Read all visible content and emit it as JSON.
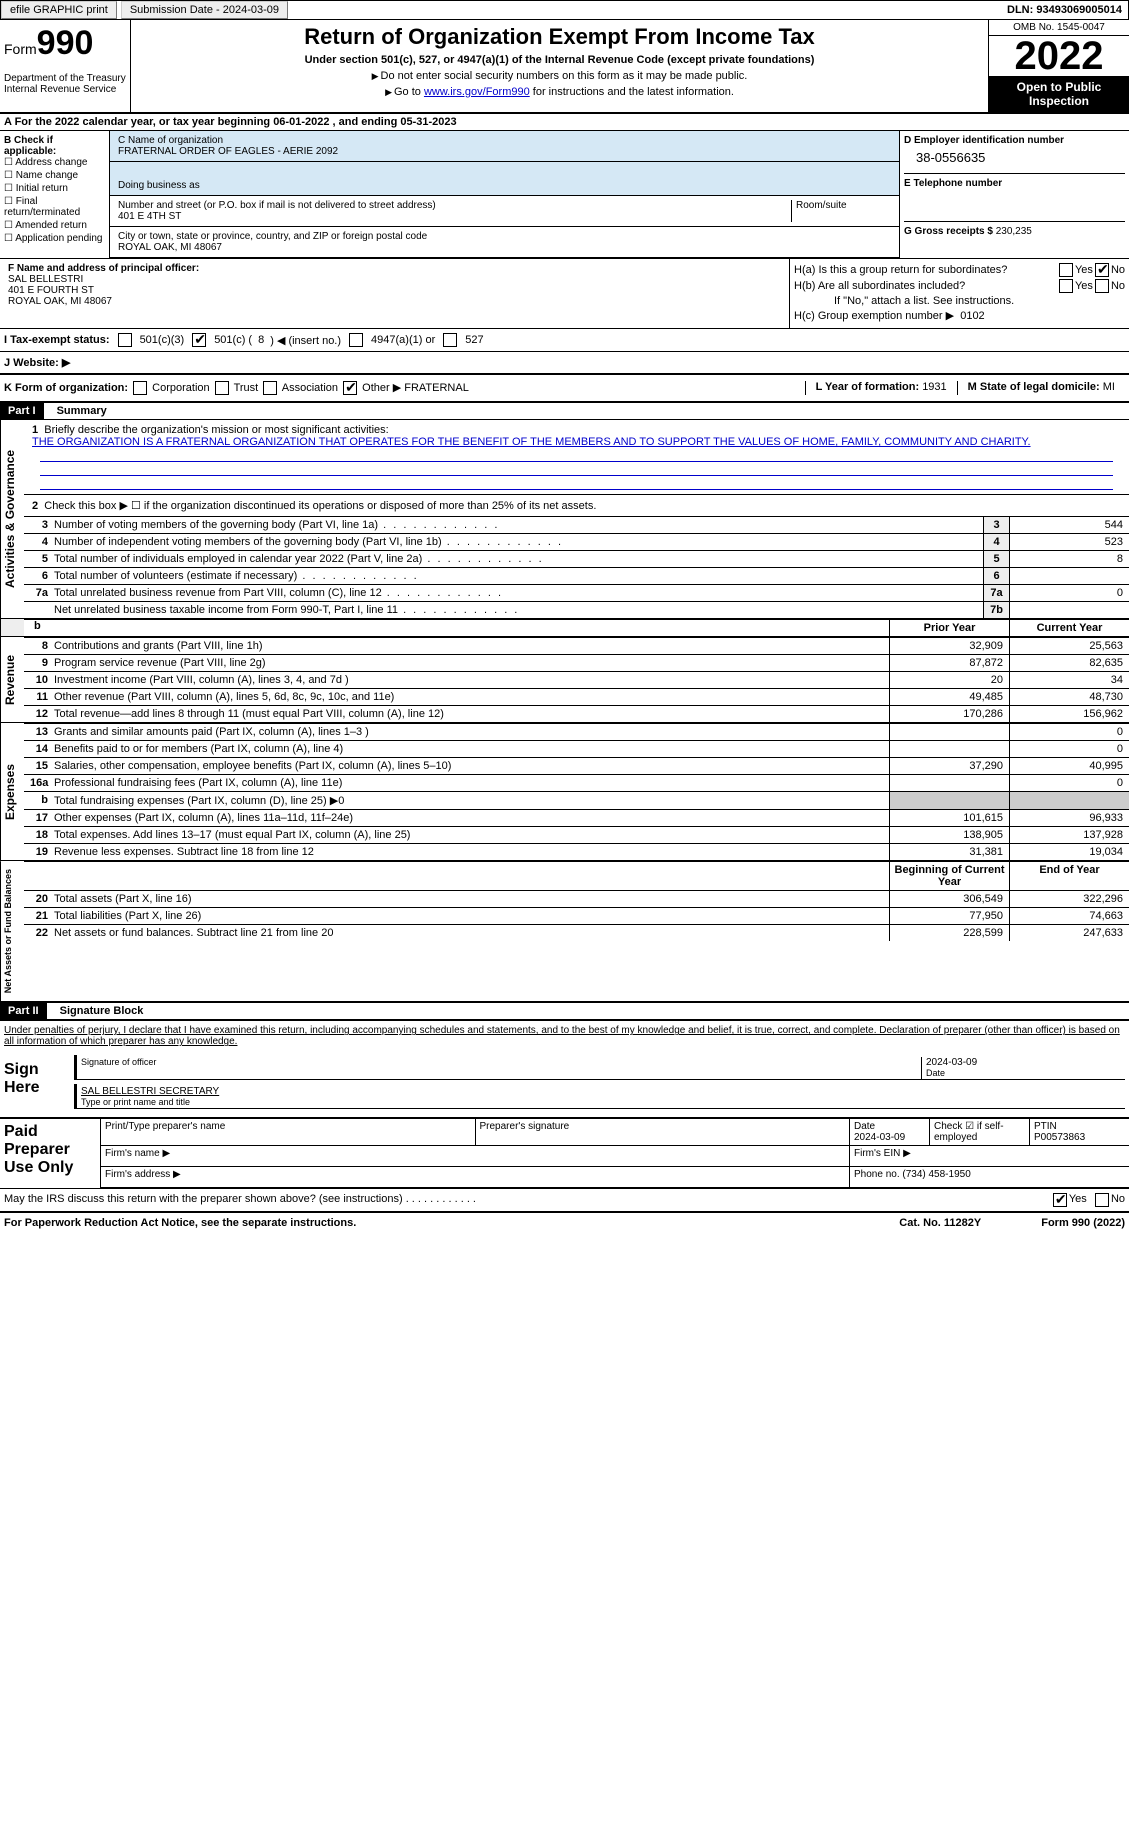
{
  "topbar": {
    "efile": "efile GRAPHIC print",
    "submission_label": "Submission Date - 2024-03-09",
    "dln": "DLN: 93493069005014"
  },
  "header": {
    "form_word": "Form",
    "form_number": "990",
    "dept": "Department of the Treasury Internal Revenue Service",
    "main_title": "Return of Organization Exempt From Income Tax",
    "sub_title": "Under section 501(c), 527, or 4947(a)(1) of the Internal Revenue Code (except private foundations)",
    "note1": "Do not enter social security numbers on this form as it may be made public.",
    "note2_prefix": "Go to ",
    "note2_link": "www.irs.gov/Form990",
    "note2_suffix": " for instructions and the latest information.",
    "omb": "OMB No. 1545-0047",
    "year": "2022",
    "open_public": "Open to Public Inspection"
  },
  "cal_year": "A For the 2022 calendar year, or tax year beginning 06-01-2022   , and ending 05-31-2023",
  "section_b": {
    "title": "B Check if applicable:",
    "opts": [
      "Address change",
      "Name change",
      "Initial return",
      "Final return/terminated",
      "Amended return",
      "Application pending"
    ]
  },
  "section_c": {
    "name_label": "C Name of organization",
    "org_name": "FRATERNAL ORDER OF EAGLES - AERIE 2092",
    "dba": "Doing business as",
    "street_label": "Number and street (or P.O. box if mail is not delivered to street address)",
    "street": "401 E 4TH ST",
    "room_label": "Room/suite",
    "city_label": "City or town, state or province, country, and ZIP or foreign postal code",
    "city": "ROYAL OAK, MI  48067"
  },
  "section_d": {
    "ein_label": "D Employer identification number",
    "ein": "38-0556635",
    "phone_label": "E Telephone number",
    "gross_label": "G Gross receipts $",
    "gross": "230,235"
  },
  "section_f": {
    "label": "F  Name and address of principal officer:",
    "name": "SAL BELLESTRI",
    "street": "401 E FOURTH ST",
    "city": "ROYAL OAK, MI  48067"
  },
  "section_h": {
    "ha": "H(a)  Is this a group return for subordinates?",
    "hb": "H(b)  Are all subordinates included?",
    "note": "If \"No,\" attach a list. See instructions.",
    "hc": "H(c)  Group exemption number ▶",
    "hc_val": "0102",
    "yes": "Yes",
    "no": "No"
  },
  "tax_exempt": {
    "label": "I   Tax-exempt status:",
    "c3": "501(c)(3)",
    "c_other_pre": "501(c) (",
    "c_other_num": "8",
    "c_other_post": ") ◀ (insert no.)",
    "a1": "4947(a)(1) or",
    "s527": "527"
  },
  "website": "J  Website: ▶",
  "k_row": {
    "label": "K Form of organization:",
    "opts": [
      "Corporation",
      "Trust",
      "Association",
      "Other ▶"
    ],
    "other_val": "FRATERNAL",
    "l_label": "L Year of formation:",
    "l_val": "1931",
    "m_label": "M State of legal domicile:",
    "m_val": "MI"
  },
  "part1": {
    "header": "Part I",
    "title": "Summary",
    "vert1": "Activities & Governance",
    "line1_label": "Briefly describe the organization's mission or most significant activities:",
    "line1_text": "THE ORGANIZATION IS A FRATERNAL ORGANIZATION THAT OPERATES FOR THE BENEFIT OF THE MEMBERS AND TO SUPPORT THE VALUES OF HOME, FAMILY, COMMUNITY AND CHARITY.",
    "line2": "Check this box ▶ ☐  if the organization discontinued its operations or disposed of more than 25% of its net assets.",
    "rows_gov": [
      {
        "n": "3",
        "desc": "Number of voting members of the governing body (Part VI, line 1a)",
        "box": "3",
        "val": "544"
      },
      {
        "n": "4",
        "desc": "Number of independent voting members of the governing body (Part VI, line 1b)",
        "box": "4",
        "val": "523"
      },
      {
        "n": "5",
        "desc": "Total number of individuals employed in calendar year 2022 (Part V, line 2a)",
        "box": "5",
        "val": "8"
      },
      {
        "n": "6",
        "desc": "Total number of volunteers (estimate if necessary)",
        "box": "6",
        "val": ""
      },
      {
        "n": "7a",
        "desc": "Total unrelated business revenue from Part VIII, column (C), line 12",
        "box": "7a",
        "val": "0"
      },
      {
        "n": "",
        "desc": "Net unrelated business taxable income from Form 990-T, Part I, line 11",
        "box": "7b",
        "val": ""
      }
    ],
    "col_prior": "Prior Year",
    "col_curr": "Current Year",
    "vert2": "Revenue",
    "rows_rev": [
      {
        "n": "8",
        "desc": "Contributions and grants (Part VIII, line 1h)",
        "prior": "32,909",
        "curr": "25,563"
      },
      {
        "n": "9",
        "desc": "Program service revenue (Part VIII, line 2g)",
        "prior": "87,872",
        "curr": "82,635"
      },
      {
        "n": "10",
        "desc": "Investment income (Part VIII, column (A), lines 3, 4, and 7d )",
        "prior": "20",
        "curr": "34"
      },
      {
        "n": "11",
        "desc": "Other revenue (Part VIII, column (A), lines 5, 6d, 8c, 9c, 10c, and 11e)",
        "prior": "49,485",
        "curr": "48,730"
      },
      {
        "n": "12",
        "desc": "Total revenue—add lines 8 through 11 (must equal Part VIII, column (A), line 12)",
        "prior": "170,286",
        "curr": "156,962"
      }
    ],
    "vert3": "Expenses",
    "rows_exp": [
      {
        "n": "13",
        "desc": "Grants and similar amounts paid (Part IX, column (A), lines 1–3 )",
        "prior": "",
        "curr": "0"
      },
      {
        "n": "14",
        "desc": "Benefits paid to or for members (Part IX, column (A), line 4)",
        "prior": "",
        "curr": "0"
      },
      {
        "n": "15",
        "desc": "Salaries, other compensation, employee benefits (Part IX, column (A), lines 5–10)",
        "prior": "37,290",
        "curr": "40,995"
      },
      {
        "n": "16a",
        "desc": "Professional fundraising fees (Part IX, column (A), line 11e)",
        "prior": "",
        "curr": "0"
      },
      {
        "n": "b",
        "desc": "Total fundraising expenses (Part IX, column (D), line 25) ▶0",
        "prior": "shaded",
        "curr": "shaded"
      },
      {
        "n": "17",
        "desc": "Other expenses (Part IX, column (A), lines 11a–11d, 11f–24e)",
        "prior": "101,615",
        "curr": "96,933"
      },
      {
        "n": "18",
        "desc": "Total expenses. Add lines 13–17 (must equal Part IX, column (A), line 25)",
        "prior": "138,905",
        "curr": "137,928"
      },
      {
        "n": "19",
        "desc": "Revenue less expenses. Subtract line 18 from line 12",
        "prior": "31,381",
        "curr": "19,034"
      }
    ],
    "vert4": "Net Assets or Fund Balances",
    "col_begin": "Beginning of Current Year",
    "col_end": "End of Year",
    "rows_net": [
      {
        "n": "20",
        "desc": "Total assets (Part X, line 16)",
        "prior": "306,549",
        "curr": "322,296"
      },
      {
        "n": "21",
        "desc": "Total liabilities (Part X, line 26)",
        "prior": "77,950",
        "curr": "74,663"
      },
      {
        "n": "22",
        "desc": "Net assets or fund balances. Subtract line 21 from line 20",
        "prior": "228,599",
        "curr": "247,633"
      }
    ]
  },
  "part2": {
    "header": "Part II",
    "title": "Signature Block",
    "penalty": "Under penalties of perjury, I declare that I have examined this return, including accompanying schedules and statements, and to the best of my knowledge and belief, it is true, correct, and complete. Declaration of preparer (other than officer) is based on all information of which preparer has any knowledge.",
    "sign_here": "Sign Here",
    "sig_officer": "Signature of officer",
    "sig_date": "2024-03-09",
    "date_label": "Date",
    "officer_name": "SAL BELLESTRI SECRETARY",
    "type_name": "Type or print name and title",
    "paid": "Paid Preparer Use Only",
    "print_name": "Print/Type preparer's name",
    "prep_sig": "Preparer's signature",
    "prep_date_label": "Date",
    "prep_date": "2024-03-09",
    "check_if": "Check ☑ if self-employed",
    "ptin_label": "PTIN",
    "ptin": "P00573863",
    "firm_name": "Firm's name  ▶",
    "firm_ein": "Firm's EIN ▶",
    "firm_addr": "Firm's address ▶",
    "firm_phone": "Phone no. (734) 458-1950",
    "discuss": "May the IRS discuss this return with the preparer shown above? (see instructions)",
    "yes": "Yes",
    "no": "No"
  },
  "footer": {
    "left": "For Paperwork Reduction Act Notice, see the separate instructions.",
    "center": "Cat. No. 11282Y",
    "right": "Form 990 (2022)"
  }
}
